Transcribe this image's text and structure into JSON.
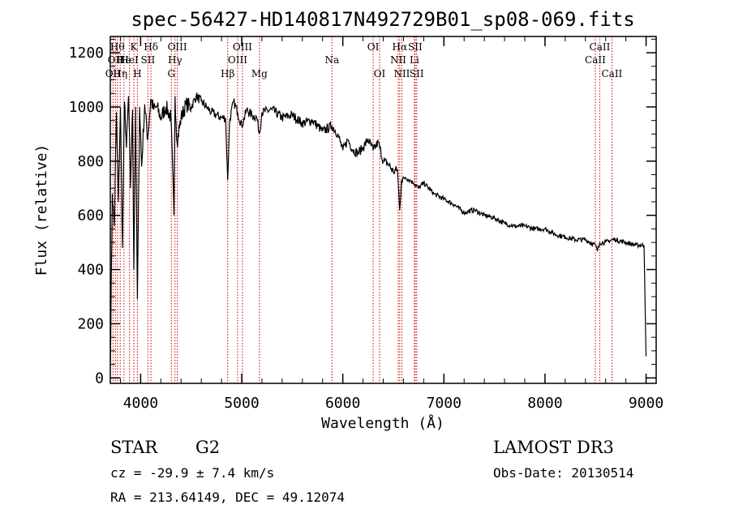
{
  "chart_data": {
    "type": "line",
    "title": "spec-56427-HD140817N492729B01_sp08-069.fits",
    "xlabel": "Wavelength (Å)",
    "ylabel": "Flux (relative)",
    "xlim": [
      3700,
      9100
    ],
    "ylim": [
      -20,
      1260
    ],
    "x_ticks": [
      4000,
      5000,
      6000,
      7000,
      8000,
      9000
    ],
    "y_ticks": [
      0,
      200,
      400,
      600,
      800,
      1000,
      1200
    ],
    "series": [
      {
        "name": "spectrum",
        "x": [
          3700,
          3720,
          3740,
          3760,
          3780,
          3800,
          3820,
          3840,
          3860,
          3880,
          3900,
          3920,
          3933,
          3950,
          3968,
          3990,
          4010,
          4040,
          4070,
          4100,
          4130,
          4160,
          4200,
          4250,
          4300,
          4330,
          4340,
          4360,
          4400,
          4450,
          4500,
          4550,
          4600,
          4650,
          4700,
          4750,
          4800,
          4840,
          4861,
          4880,
          4920,
          4960,
          5000,
          5050,
          5100,
          5150,
          5175,
          5200,
          5300,
          5400,
          5500,
          5600,
          5700,
          5800,
          5893,
          5950,
          6000,
          6050,
          6100,
          6150,
          6200,
          6250,
          6300,
          6350,
          6400,
          6450,
          6500,
          6540,
          6563,
          6580,
          6620,
          6660,
          6700,
          6750,
          6800,
          6900,
          7000,
          7100,
          7200,
          7300,
          7400,
          7500,
          7600,
          7700,
          7800,
          7900,
          8000,
          8100,
          8200,
          8300,
          8400,
          8498,
          8520,
          8542,
          8600,
          8662,
          8700,
          8800,
          8900,
          8980,
          9000
        ],
        "y": [
          30,
          680,
          560,
          980,
          650,
          1000,
          480,
          1020,
          850,
          1040,
          700,
          990,
          400,
          1000,
          290,
          1000,
          780,
          1010,
          880,
          1030,
          990,
          1000,
          960,
          1000,
          960,
          600,
          1040,
          870,
          960,
          1010,
          1000,
          1040,
          1020,
          1000,
          980,
          970,
          960,
          960,
          730,
          950,
          1020,
          980,
          930,
          990,
          970,
          960,
          900,
          980,
          990,
          960,
          970,
          940,
          950,
          910,
          930,
          900,
          840,
          880,
          840,
          830,
          850,
          880,
          840,
          870,
          800,
          790,
          760,
          770,
          620,
          730,
          740,
          730,
          720,
          700,
          720,
          680,
          660,
          640,
          610,
          620,
          600,
          590,
          570,
          560,
          560,
          550,
          550,
          530,
          520,
          510,
          510,
          490,
          470,
          500,
          500,
          510,
          510,
          500,
          490,
          490,
          80
        ]
      }
    ],
    "line_markers": [
      {
        "wavelength": 3727,
        "label": "OII",
        "row": 3
      },
      {
        "wavelength": 3750,
        "label": "OII",
        "row": 2
      },
      {
        "wavelength": 3770,
        "label": "Hθ",
        "row": 1
      },
      {
        "wavelength": 3798,
        "label": "Hη",
        "row": 3
      },
      {
        "wavelength": 3835,
        "label": "He",
        "row": 2
      },
      {
        "wavelength": 3889,
        "label": "HeI",
        "row": 2
      },
      {
        "wavelength": 3933,
        "label": "K",
        "row": 1
      },
      {
        "wavelength": 3968,
        "label": "H",
        "row": 3
      },
      {
        "wavelength": 4072,
        "label": "SII",
        "row": 2
      },
      {
        "wavelength": 4102,
        "label": "Hδ",
        "row": 1
      },
      {
        "wavelength": 4304,
        "label": "G",
        "row": 3
      },
      {
        "wavelength": 4340,
        "label": "Hγ",
        "row": 2
      },
      {
        "wavelength": 4363,
        "label": "OIII",
        "row": 1
      },
      {
        "wavelength": 4861,
        "label": "Hβ",
        "row": 3
      },
      {
        "wavelength": 4959,
        "label": "OIII",
        "row": 2
      },
      {
        "wavelength": 5007,
        "label": "OIII",
        "row": 1
      },
      {
        "wavelength": 5175,
        "label": "Mg",
        "row": 3
      },
      {
        "wavelength": 5893,
        "label": "Na",
        "row": 2
      },
      {
        "wavelength": 6300,
        "label": "OI",
        "row": 1
      },
      {
        "wavelength": 6364,
        "label": "OI",
        "row": 3
      },
      {
        "wavelength": 6548,
        "label": "NII",
        "row": 2
      },
      {
        "wavelength": 6563,
        "label": "Hα",
        "row": 1
      },
      {
        "wavelength": 6584,
        "label": "NII",
        "row": 3
      },
      {
        "wavelength": 6708,
        "label": "Li",
        "row": 2
      },
      {
        "wavelength": 6716,
        "label": "SII",
        "row": 1
      },
      {
        "wavelength": 6731,
        "label": "SII",
        "row": 3
      },
      {
        "wavelength": 8498,
        "label": "CaII",
        "row": 2
      },
      {
        "wavelength": 8542,
        "label": "CaII",
        "row": 1
      },
      {
        "wavelength": 8662,
        "label": "CaII",
        "row": 3
      }
    ]
  },
  "footer": {
    "class": "STAR",
    "subclass": "G2",
    "survey": "LAMOST DR3",
    "cz": "cz = -29.9 ± 7.4 km/s",
    "obs_date": "Obs-Date: 20130514",
    "coords": "RA = 213.64149, DEC =  49.12074"
  },
  "colors": {
    "spectrum": "#000000",
    "marker": "#cc0000",
    "axes": "#000000"
  }
}
